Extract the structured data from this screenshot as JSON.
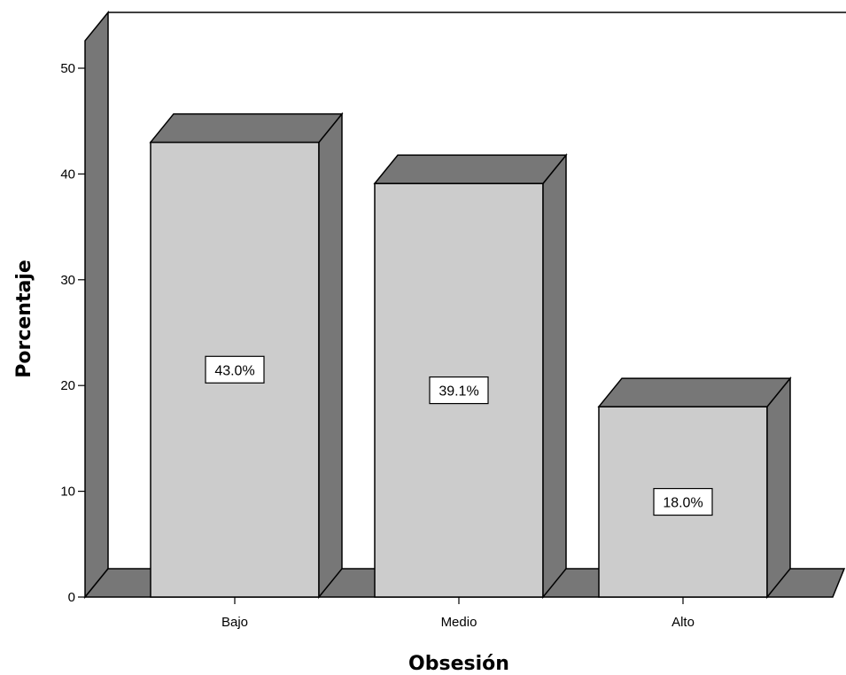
{
  "chart_data": {
    "type": "bar",
    "style": "3d",
    "categories": [
      "Bajo",
      "Medio",
      "Alto"
    ],
    "values": [
      43.0,
      39.1,
      18.0
    ],
    "data_labels": [
      "43.0%",
      "39.1%",
      "18.0%"
    ],
    "xlabel": "Obsesión",
    "ylabel": "Porcentaje",
    "ylim": [
      0,
      50
    ],
    "yticks": [
      0,
      10,
      20,
      30,
      40,
      50
    ],
    "grid": false,
    "legend": "none",
    "colors": {
      "bar_front": "#cccccc",
      "bar_side": "#777777",
      "bar_top": "#777777",
      "floor": "#777777",
      "back_wall": "#777777",
      "outline": "#000000"
    }
  }
}
